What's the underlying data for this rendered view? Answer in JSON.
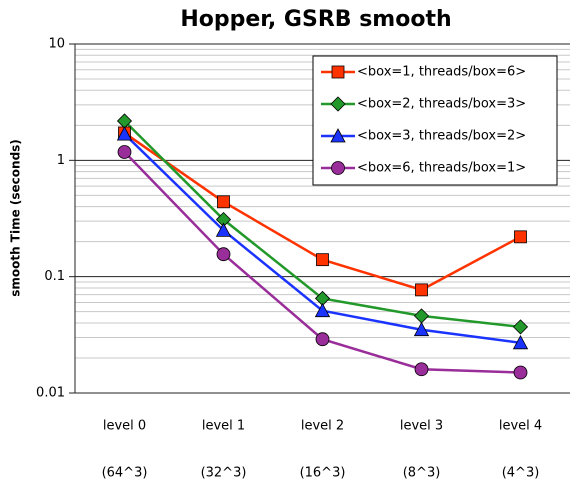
{
  "chart_data": {
    "type": "line",
    "title": "Hopper, GSRB smooth",
    "y_label": "smooth Time (seconds)",
    "categories": [
      "level 0",
      "level 1",
      "level 2",
      "level 3",
      "level 4"
    ],
    "category_notes": [
      "(64^3)",
      "(32^3)",
      "(16^3)",
      "(8^3)",
      "(4^3)"
    ],
    "y_scale": "log",
    "ylim": [
      0.01,
      10
    ],
    "yticks": [
      0.01,
      0.1,
      1,
      10
    ],
    "grid": true,
    "minor_grid": true,
    "legend": "top-right",
    "series": [
      {
        "name": "<box=1, threads/box=6>",
        "color": "#ff3300",
        "marker": "square",
        "values": [
          1.72,
          0.44,
          0.14,
          0.077,
          0.22
        ]
      },
      {
        "name": "<box=2, threads/box=3>",
        "color": "#22992a",
        "marker": "diamond",
        "values": [
          2.18,
          0.31,
          0.065,
          0.046,
          0.037
        ]
      },
      {
        "name": "<box=3, threads/box=2>",
        "color": "#1a33ff",
        "marker": "triangle",
        "values": [
          1.68,
          0.25,
          0.051,
          0.035,
          0.027
        ]
      },
      {
        "name": "<box=6, threads/box=1>",
        "color": "#992d99",
        "marker": "circle",
        "values": [
          1.18,
          0.156,
          0.029,
          0.016,
          0.015
        ]
      }
    ]
  }
}
